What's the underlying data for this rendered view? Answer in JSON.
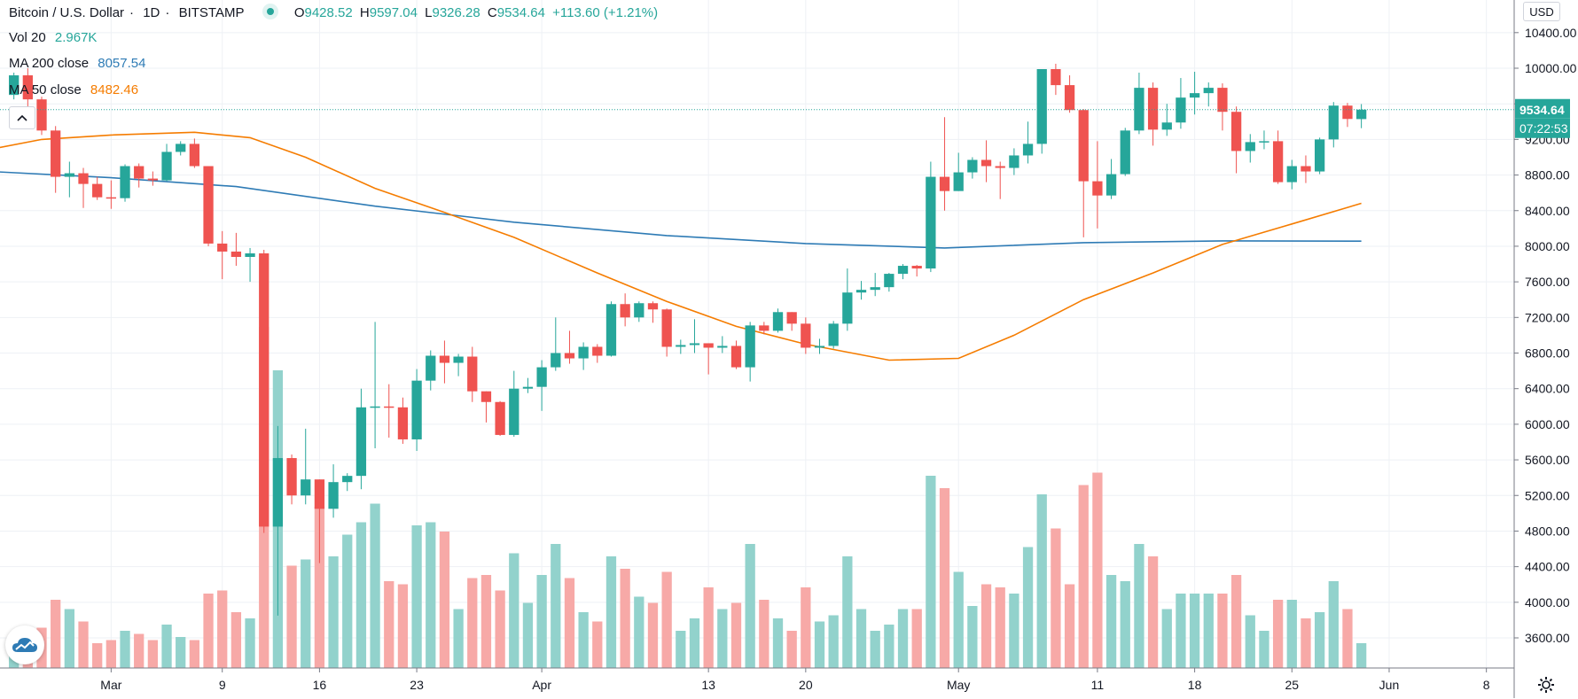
{
  "header": {
    "symbol": "Bitcoin / U.S. Dollar",
    "interval": "1D",
    "exchange": "BITSTAMP",
    "ohlc": {
      "o_label": "O",
      "o": "9428.52",
      "h_label": "H",
      "h": "9597.04",
      "l_label": "L",
      "l": "9326.28",
      "c_label": "C",
      "c": "9534.64",
      "change": "+113.60 (+1.21%)"
    }
  },
  "indicators": {
    "volume": {
      "label": "Vol 20",
      "value": "2.967K"
    },
    "ma200": {
      "label": "MA 200 close",
      "value": "8057.54",
      "color": "#2e7bb5"
    },
    "ma50": {
      "label": "MA 50 close",
      "value": "8482.46",
      "color": "#f57c00"
    }
  },
  "price_scale": {
    "currency": "USD",
    "current_price": "9534.64",
    "countdown": "07:22:53"
  },
  "colors": {
    "up": "#26a69a",
    "down": "#ef5350",
    "up_vol": "#92d2cc",
    "down_vol": "#f7a9a7",
    "grid": "#eef1f5",
    "tag_bg": "#26a69a"
  },
  "icons": {
    "logo": "tradingview-cloud-icon",
    "settings": "gear-icon",
    "collapse": "chevron-up-icon"
  },
  "chart_data": {
    "type": "candlestick",
    "title": "Bitcoin / U.S. Dollar · 1D · BITSTAMP",
    "y_ticks": [
      3600,
      4000,
      4400,
      4800,
      5200,
      5600,
      6000,
      6400,
      6800,
      7200,
      7600,
      8000,
      8400,
      8800,
      9200,
      9600,
      10000,
      10400
    ],
    "ylim": [
      3200,
      10800
    ],
    "x_ticks": [
      {
        "label": "Mar",
        "date": "2020-03-01"
      },
      {
        "label": "9",
        "date": "2020-03-09"
      },
      {
        "label": "16",
        "date": "2020-03-16"
      },
      {
        "label": "23",
        "date": "2020-03-23"
      },
      {
        "label": "Apr",
        "date": "2020-04-01"
      },
      {
        "label": "13",
        "date": "2020-04-13"
      },
      {
        "label": "20",
        "date": "2020-04-20"
      },
      {
        "label": "May",
        "date": "2020-05-01"
      },
      {
        "label": "11",
        "date": "2020-05-11"
      },
      {
        "label": "18",
        "date": "2020-05-18"
      },
      {
        "label": "25",
        "date": "2020-05-25"
      },
      {
        "label": "Jun",
        "date": "2020-06-01"
      },
      {
        "label": "8",
        "date": "2020-06-08"
      }
    ],
    "xlim": [
      "2020-02-22",
      "2020-06-10"
    ],
    "grid": true,
    "series_ohlc": [
      {
        "date": "2020-02-23",
        "o": 9700,
        "h": 9950,
        "l": 9650,
        "c": 9920,
        "v": 0.8
      },
      {
        "date": "2020-02-24",
        "o": 9920,
        "h": 10000,
        "l": 9500,
        "c": 9650,
        "v": 0.9
      },
      {
        "date": "2020-02-25",
        "o": 9650,
        "h": 9680,
        "l": 9250,
        "c": 9300,
        "v": 1.3
      },
      {
        "date": "2020-02-26",
        "o": 9300,
        "h": 9350,
        "l": 8600,
        "c": 8780,
        "v": 2.2
      },
      {
        "date": "2020-02-27",
        "o": 8780,
        "h": 8950,
        "l": 8550,
        "c": 8820,
        "v": 1.9
      },
      {
        "date": "2020-02-28",
        "o": 8820,
        "h": 8880,
        "l": 8430,
        "c": 8700,
        "v": 1.5
      },
      {
        "date": "2020-02-29",
        "o": 8700,
        "h": 8780,
        "l": 8520,
        "c": 8550,
        "v": 0.8
      },
      {
        "date": "2020-03-01",
        "o": 8550,
        "h": 8740,
        "l": 8420,
        "c": 8540,
        "v": 0.9
      },
      {
        "date": "2020-03-02",
        "o": 8540,
        "h": 8920,
        "l": 8500,
        "c": 8900,
        "v": 1.2
      },
      {
        "date": "2020-03-03",
        "o": 8900,
        "h": 8930,
        "l": 8660,
        "c": 8760,
        "v": 1.1
      },
      {
        "date": "2020-03-04",
        "o": 8760,
        "h": 8840,
        "l": 8680,
        "c": 8740,
        "v": 0.9
      },
      {
        "date": "2020-03-05",
        "o": 8740,
        "h": 9150,
        "l": 8730,
        "c": 9060,
        "v": 1.4
      },
      {
        "date": "2020-03-06",
        "o": 9060,
        "h": 9180,
        "l": 9020,
        "c": 9150,
        "v": 1.0
      },
      {
        "date": "2020-03-07",
        "o": 9150,
        "h": 9210,
        "l": 8880,
        "c": 8900,
        "v": 0.9
      },
      {
        "date": "2020-03-08",
        "o": 8900,
        "h": 8900,
        "l": 8000,
        "c": 8030,
        "v": 2.4
      },
      {
        "date": "2020-03-09",
        "o": 8030,
        "h": 8170,
        "l": 7630,
        "c": 7940,
        "v": 2.5
      },
      {
        "date": "2020-03-10",
        "o": 7940,
        "h": 8150,
        "l": 7780,
        "c": 7880,
        "v": 1.8
      },
      {
        "date": "2020-03-11",
        "o": 7880,
        "h": 7980,
        "l": 7600,
        "c": 7920,
        "v": 1.6
      },
      {
        "date": "2020-03-12",
        "o": 7920,
        "h": 7960,
        "l": 4780,
        "c": 4850,
        "v": 11.0
      },
      {
        "date": "2020-03-13",
        "o": 4850,
        "h": 5980,
        "l": 3850,
        "c": 5620,
        "v": 9.6
      },
      {
        "date": "2020-03-14",
        "o": 5620,
        "h": 5660,
        "l": 5100,
        "c": 5200,
        "v": 3.3
      },
      {
        "date": "2020-03-15",
        "o": 5200,
        "h": 5950,
        "l": 5100,
        "c": 5380,
        "v": 3.5
      },
      {
        "date": "2020-03-16",
        "o": 5380,
        "h": 5380,
        "l": 4440,
        "c": 5050,
        "v": 5.2
      },
      {
        "date": "2020-03-17",
        "o": 5050,
        "h": 5550,
        "l": 4950,
        "c": 5350,
        "v": 3.6
      },
      {
        "date": "2020-03-18",
        "o": 5350,
        "h": 5450,
        "l": 5250,
        "c": 5420,
        "v": 4.3
      },
      {
        "date": "2020-03-19",
        "o": 5420,
        "h": 6400,
        "l": 5270,
        "c": 6190,
        "v": 4.7
      },
      {
        "date": "2020-03-20",
        "o": 6190,
        "h": 7150,
        "l": 5730,
        "c": 6200,
        "v": 5.3
      },
      {
        "date": "2020-03-21",
        "o": 6200,
        "h": 6450,
        "l": 5850,
        "c": 6190,
        "v": 2.8
      },
      {
        "date": "2020-03-22",
        "o": 6190,
        "h": 6300,
        "l": 5780,
        "c": 5830,
        "v": 2.7
      },
      {
        "date": "2020-03-23",
        "o": 5830,
        "h": 6620,
        "l": 5700,
        "c": 6490,
        "v": 4.6
      },
      {
        "date": "2020-03-24",
        "o": 6490,
        "h": 6830,
        "l": 6380,
        "c": 6770,
        "v": 4.7
      },
      {
        "date": "2020-03-25",
        "o": 6770,
        "h": 6940,
        "l": 6460,
        "c": 6690,
        "v": 4.4
      },
      {
        "date": "2020-03-26",
        "o": 6690,
        "h": 6790,
        "l": 6540,
        "c": 6760,
        "v": 1.9
      },
      {
        "date": "2020-03-27",
        "o": 6760,
        "h": 6870,
        "l": 6250,
        "c": 6370,
        "v": 2.9
      },
      {
        "date": "2020-03-28",
        "o": 6370,
        "h": 6370,
        "l": 6020,
        "c": 6250,
        "v": 3.0
      },
      {
        "date": "2020-03-29",
        "o": 6250,
        "h": 6260,
        "l": 5870,
        "c": 5880,
        "v": 2.5
      },
      {
        "date": "2020-03-30",
        "o": 5880,
        "h": 6600,
        "l": 5860,
        "c": 6400,
        "v": 3.7
      },
      {
        "date": "2020-03-31",
        "o": 6400,
        "h": 6520,
        "l": 6350,
        "c": 6420,
        "v": 2.1
      },
      {
        "date": "2020-04-01",
        "o": 6420,
        "h": 6720,
        "l": 6150,
        "c": 6640,
        "v": 3.0
      },
      {
        "date": "2020-04-02",
        "o": 6640,
        "h": 7200,
        "l": 6600,
        "c": 6800,
        "v": 4.0
      },
      {
        "date": "2020-04-03",
        "o": 6800,
        "h": 7050,
        "l": 6680,
        "c": 6740,
        "v": 2.9
      },
      {
        "date": "2020-04-04",
        "o": 6740,
        "h": 6920,
        "l": 6610,
        "c": 6870,
        "v": 1.8
      },
      {
        "date": "2020-04-05",
        "o": 6870,
        "h": 6900,
        "l": 6690,
        "c": 6770,
        "v": 1.5
      },
      {
        "date": "2020-04-06",
        "o": 6770,
        "h": 7380,
        "l": 6760,
        "c": 7350,
        "v": 3.6
      },
      {
        "date": "2020-04-07",
        "o": 7350,
        "h": 7470,
        "l": 7100,
        "c": 7200,
        "v": 3.2
      },
      {
        "date": "2020-04-08",
        "o": 7200,
        "h": 7380,
        "l": 7150,
        "c": 7360,
        "v": 2.3
      },
      {
        "date": "2020-04-09",
        "o": 7360,
        "h": 7380,
        "l": 7140,
        "c": 7290,
        "v": 2.1
      },
      {
        "date": "2020-04-10",
        "o": 7290,
        "h": 7300,
        "l": 6760,
        "c": 6870,
        "v": 3.1
      },
      {
        "date": "2020-04-11",
        "o": 6870,
        "h": 6950,
        "l": 6790,
        "c": 6890,
        "v": 1.2
      },
      {
        "date": "2020-04-12",
        "o": 6890,
        "h": 7180,
        "l": 6800,
        "c": 6910,
        "v": 1.6
      },
      {
        "date": "2020-04-13",
        "o": 6910,
        "h": 6910,
        "l": 6560,
        "c": 6860,
        "v": 2.6
      },
      {
        "date": "2020-04-14",
        "o": 6860,
        "h": 6990,
        "l": 6800,
        "c": 6880,
        "v": 1.9
      },
      {
        "date": "2020-04-15",
        "o": 6880,
        "h": 6940,
        "l": 6620,
        "c": 6640,
        "v": 2.1
      },
      {
        "date": "2020-04-16",
        "o": 6640,
        "h": 7150,
        "l": 6480,
        "c": 7110,
        "v": 4.0
      },
      {
        "date": "2020-04-17",
        "o": 7110,
        "h": 7150,
        "l": 7010,
        "c": 7050,
        "v": 2.2
      },
      {
        "date": "2020-04-18",
        "o": 7050,
        "h": 7300,
        "l": 7030,
        "c": 7260,
        "v": 1.6
      },
      {
        "date": "2020-04-19",
        "o": 7260,
        "h": 7260,
        "l": 7050,
        "c": 7130,
        "v": 1.2
      },
      {
        "date": "2020-04-20",
        "o": 7130,
        "h": 7200,
        "l": 6790,
        "c": 6860,
        "v": 2.6
      },
      {
        "date": "2020-04-21",
        "o": 6860,
        "h": 6960,
        "l": 6790,
        "c": 6880,
        "v": 1.5
      },
      {
        "date": "2020-04-22",
        "o": 6880,
        "h": 7160,
        "l": 6850,
        "c": 7130,
        "v": 1.7
      },
      {
        "date": "2020-04-23",
        "o": 7130,
        "h": 7750,
        "l": 7050,
        "c": 7480,
        "v": 3.6
      },
      {
        "date": "2020-04-24",
        "o": 7480,
        "h": 7610,
        "l": 7400,
        "c": 7510,
        "v": 1.9
      },
      {
        "date": "2020-04-25",
        "o": 7510,
        "h": 7700,
        "l": 7440,
        "c": 7540,
        "v": 1.2
      },
      {
        "date": "2020-04-26",
        "o": 7540,
        "h": 7700,
        "l": 7490,
        "c": 7690,
        "v": 1.4
      },
      {
        "date": "2020-04-27",
        "o": 7690,
        "h": 7800,
        "l": 7630,
        "c": 7780,
        "v": 1.9
      },
      {
        "date": "2020-04-28",
        "o": 7780,
        "h": 7790,
        "l": 7660,
        "c": 7750,
        "v": 1.9
      },
      {
        "date": "2020-04-29",
        "o": 7750,
        "h": 8950,
        "l": 7710,
        "c": 8780,
        "v": 6.2
      },
      {
        "date": "2020-04-30",
        "o": 8780,
        "h": 9450,
        "l": 8400,
        "c": 8620,
        "v": 5.8
      },
      {
        "date": "2020-05-01",
        "o": 8620,
        "h": 9050,
        "l": 8620,
        "c": 8830,
        "v": 3.1
      },
      {
        "date": "2020-05-02",
        "o": 8830,
        "h": 9000,
        "l": 8760,
        "c": 8970,
        "v": 2.0
      },
      {
        "date": "2020-05-03",
        "o": 8970,
        "h": 9190,
        "l": 8720,
        "c": 8900,
        "v": 2.7
      },
      {
        "date": "2020-05-04",
        "o": 8900,
        "h": 8950,
        "l": 8530,
        "c": 8880,
        "v": 2.6
      },
      {
        "date": "2020-05-05",
        "o": 8880,
        "h": 9100,
        "l": 8800,
        "c": 9020,
        "v": 2.4
      },
      {
        "date": "2020-05-06",
        "o": 9020,
        "h": 9400,
        "l": 8930,
        "c": 9150,
        "v": 3.9
      },
      {
        "date": "2020-05-07",
        "o": 9150,
        "h": 9980,
        "l": 9040,
        "c": 9990,
        "v": 5.6
      },
      {
        "date": "2020-05-08",
        "o": 9990,
        "h": 10050,
        "l": 9700,
        "c": 9810,
        "v": 4.5
      },
      {
        "date": "2020-05-09",
        "o": 9810,
        "h": 9920,
        "l": 9500,
        "c": 9530,
        "v": 2.7
      },
      {
        "date": "2020-05-10",
        "o": 9530,
        "h": 9540,
        "l": 8100,
        "c": 8730,
        "v": 5.9
      },
      {
        "date": "2020-05-11",
        "o": 8730,
        "h": 9180,
        "l": 8200,
        "c": 8570,
        "v": 6.3
      },
      {
        "date": "2020-05-12",
        "o": 8570,
        "h": 8980,
        "l": 8530,
        "c": 8810,
        "v": 3.0
      },
      {
        "date": "2020-05-13",
        "o": 8810,
        "h": 9330,
        "l": 8790,
        "c": 9300,
        "v": 2.8
      },
      {
        "date": "2020-05-14",
        "o": 9300,
        "h": 9950,
        "l": 9260,
        "c": 9780,
        "v": 4.0
      },
      {
        "date": "2020-05-15",
        "o": 9780,
        "h": 9840,
        "l": 9130,
        "c": 9310,
        "v": 3.6
      },
      {
        "date": "2020-05-16",
        "o": 9310,
        "h": 9600,
        "l": 9240,
        "c": 9390,
        "v": 1.9
      },
      {
        "date": "2020-05-17",
        "o": 9390,
        "h": 9890,
        "l": 9320,
        "c": 9670,
        "v": 2.4
      },
      {
        "date": "2020-05-18",
        "o": 9670,
        "h": 9960,
        "l": 9480,
        "c": 9720,
        "v": 2.4
      },
      {
        "date": "2020-05-19",
        "o": 9720,
        "h": 9840,
        "l": 9570,
        "c": 9780,
        "v": 2.4
      },
      {
        "date": "2020-05-20",
        "o": 9780,
        "h": 9830,
        "l": 9300,
        "c": 9510,
        "v": 2.4
      },
      {
        "date": "2020-05-21",
        "o": 9510,
        "h": 9570,
        "l": 8820,
        "c": 9070,
        "v": 3.0
      },
      {
        "date": "2020-05-22",
        "o": 9070,
        "h": 9260,
        "l": 8940,
        "c": 9170,
        "v": 1.7
      },
      {
        "date": "2020-05-23",
        "o": 9170,
        "h": 9300,
        "l": 9090,
        "c": 9180,
        "v": 1.2
      },
      {
        "date": "2020-05-24",
        "o": 9180,
        "h": 9300,
        "l": 8700,
        "c": 8720,
        "v": 2.2
      },
      {
        "date": "2020-05-25",
        "o": 8720,
        "h": 8970,
        "l": 8640,
        "c": 8900,
        "v": 2.2
      },
      {
        "date": "2020-05-26",
        "o": 8900,
        "h": 9020,
        "l": 8710,
        "c": 8840,
        "v": 1.6
      },
      {
        "date": "2020-05-27",
        "o": 8840,
        "h": 9220,
        "l": 8810,
        "c": 9200,
        "v": 1.8
      },
      {
        "date": "2020-05-28",
        "o": 9200,
        "h": 9620,
        "l": 9110,
        "c": 9580,
        "v": 2.8
      },
      {
        "date": "2020-05-29",
        "o": 9580,
        "h": 9610,
        "l": 9340,
        "c": 9430,
        "v": 1.9
      },
      {
        "date": "2020-05-30",
        "o": 9428.52,
        "h": 9597.04,
        "l": 9326.28,
        "c": 9534.64,
        "v": 0.8
      }
    ],
    "series": [
      {
        "name": "MA 200 close",
        "color": "#2e7bb5",
        "points": [
          {
            "date": "2020-02-20",
            "y": 8850
          },
          {
            "date": "2020-03-01",
            "y": 8770
          },
          {
            "date": "2020-03-10",
            "y": 8670
          },
          {
            "date": "2020-03-20",
            "y": 8450
          },
          {
            "date": "2020-03-30",
            "y": 8270
          },
          {
            "date": "2020-04-10",
            "y": 8120
          },
          {
            "date": "2020-04-20",
            "y": 8030
          },
          {
            "date": "2020-04-30",
            "y": 7980
          },
          {
            "date": "2020-05-10",
            "y": 8040
          },
          {
            "date": "2020-05-20",
            "y": 8060
          },
          {
            "date": "2020-05-30",
            "y": 8057.54
          }
        ]
      },
      {
        "name": "MA 50 close",
        "color": "#f57c00",
        "points": [
          {
            "date": "2020-02-20",
            "y": 9050
          },
          {
            "date": "2020-02-25",
            "y": 9200
          },
          {
            "date": "2020-03-01",
            "y": 9250
          },
          {
            "date": "2020-03-07",
            "y": 9280
          },
          {
            "date": "2020-03-11",
            "y": 9220
          },
          {
            "date": "2020-03-15",
            "y": 9000
          },
          {
            "date": "2020-03-20",
            "y": 8650
          },
          {
            "date": "2020-03-25",
            "y": 8380
          },
          {
            "date": "2020-03-30",
            "y": 8100
          },
          {
            "date": "2020-04-05",
            "y": 7700
          },
          {
            "date": "2020-04-10",
            "y": 7380
          },
          {
            "date": "2020-04-15",
            "y": 7100
          },
          {
            "date": "2020-04-20",
            "y": 6900
          },
          {
            "date": "2020-04-26",
            "y": 6720
          },
          {
            "date": "2020-05-01",
            "y": 6740
          },
          {
            "date": "2020-05-05",
            "y": 7000
          },
          {
            "date": "2020-05-10",
            "y": 7400
          },
          {
            "date": "2020-05-15",
            "y": 7700
          },
          {
            "date": "2020-05-20",
            "y": 8020
          },
          {
            "date": "2020-05-25",
            "y": 8250
          },
          {
            "date": "2020-05-30",
            "y": 8482.46
          }
        ]
      }
    ],
    "volume_unit": "K",
    "last_price_line": 9534.64
  }
}
